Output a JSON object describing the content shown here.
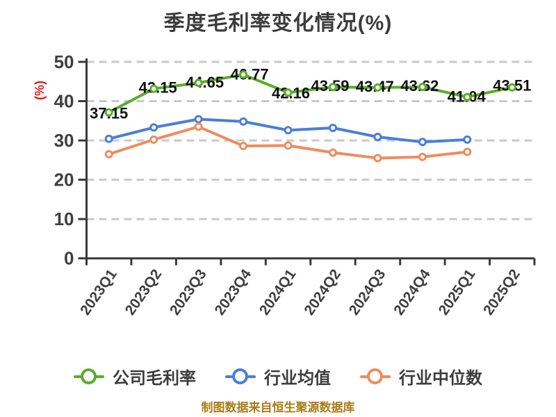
{
  "title": "季度毛利率变化情况(%)",
  "y_axis_unit_label": "(%)",
  "footer_note": "制图数据来自恒生聚源数据库",
  "colors": {
    "company_line": "#5aad2b",
    "industry_avg_line": "#4a7ed9",
    "industry_median_line": "#f08b5e",
    "axis": "#3a3a3a",
    "grid": "#c9c9c9",
    "tick_text": "#3f3f3f",
    "data_label_text": "#111111",
    "title_text": "#3c3c3c",
    "footer_text": "#a97c17",
    "unit_label_text": "#e01e1e",
    "marker_fill": "#ffffff"
  },
  "legend": {
    "items": [
      {
        "label": "公司毛利率",
        "color": "#5aad2b"
      },
      {
        "label": "行业均值",
        "color": "#4a7ed9"
      },
      {
        "label": "行业中位数",
        "color": "#f08b5e"
      }
    ]
  },
  "chart_data": {
    "type": "line",
    "title": "季度毛利率变化情况(%)",
    "categories": [
      "2023Q1",
      "2023Q2",
      "2023Q3",
      "2023Q4",
      "2024Q1",
      "2024Q2",
      "2024Q3",
      "2024Q4",
      "2025Q1",
      "2025Q2"
    ],
    "series": [
      {
        "name": "公司毛利率",
        "color": "#5aad2b",
        "values": [
          37.15,
          43.15,
          44.65,
          46.77,
          42.16,
          43.59,
          43.47,
          43.62,
          41.04,
          43.51
        ],
        "show_labels": true,
        "label_offsets": [
          [
            0,
            1
          ],
          [
            6,
            -2
          ],
          [
            9,
            -1
          ],
          [
            9,
            -1
          ],
          [
            4,
            0
          ],
          [
            -4,
            -2
          ],
          [
            -4,
            -2
          ],
          [
            -4,
            -2
          ],
          [
            -1,
            -1
          ],
          [
            0,
            -3
          ]
        ]
      },
      {
        "name": "行业均值",
        "color": "#4a7ed9",
        "values": [
          30.4,
          33.3,
          35.4,
          34.8,
          32.6,
          33.2,
          30.9,
          29.6,
          30.2
        ],
        "show_labels": false
      },
      {
        "name": "行业中位数",
        "color": "#f08b5e",
        "values": [
          26.5,
          30.2,
          33.5,
          28.6,
          28.7,
          26.9,
          25.5,
          25.8,
          27.1
        ],
        "show_labels": false
      }
    ],
    "ylabel": "(%)",
    "ylim": [
      0,
      50
    ],
    "yticks": [
      0,
      10,
      20,
      30,
      40,
      50
    ],
    "x_label_rotation_deg": -55,
    "grid": "horizontal-dashed",
    "legend_position": "bottom"
  }
}
